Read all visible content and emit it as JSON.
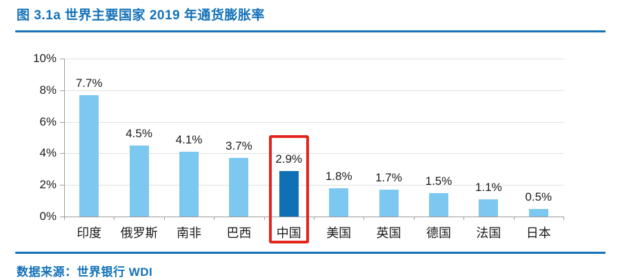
{
  "header": {
    "title": "图 3.1a  世界主要国家 2019 年通货膨胀率"
  },
  "footer": {
    "source_prefix": "数据来源：",
    "source_text": "世界银行 WDI"
  },
  "colors": {
    "accent_blue": "#1371B8",
    "bar_light": "#7DC8F0",
    "bar_highlight": "#0F70B6",
    "highlight_box_red": "#E1251B",
    "gridline_gray": "#E0E0E0",
    "axis_gray": "#9C9C9C"
  },
  "chart_data": {
    "type": "bar",
    "title": "世界主要国家 2019 年通货膨胀率",
    "categories": [
      "印度",
      "俄罗斯",
      "南非",
      "巴西",
      "中国",
      "美国",
      "英国",
      "德国",
      "法国",
      "日本"
    ],
    "values": [
      7.7,
      4.5,
      4.1,
      3.7,
      2.9,
      1.8,
      1.7,
      1.5,
      1.1,
      0.5
    ],
    "value_labels": [
      "7.7%",
      "4.5%",
      "4.1%",
      "3.7%",
      "2.9%",
      "1.8%",
      "1.7%",
      "1.5%",
      "1.1%",
      "0.5%"
    ],
    "yticks": [
      "0%",
      "2%",
      "4%",
      "6%",
      "8%",
      "10%"
    ],
    "ytick_values": [
      0,
      2,
      4,
      6,
      8,
      10
    ],
    "ylim": [
      0,
      10
    ],
    "xlabel": "",
    "ylabel": "",
    "grid": true,
    "legend": false,
    "highlight_index": 4,
    "highlight_country": "中国"
  }
}
